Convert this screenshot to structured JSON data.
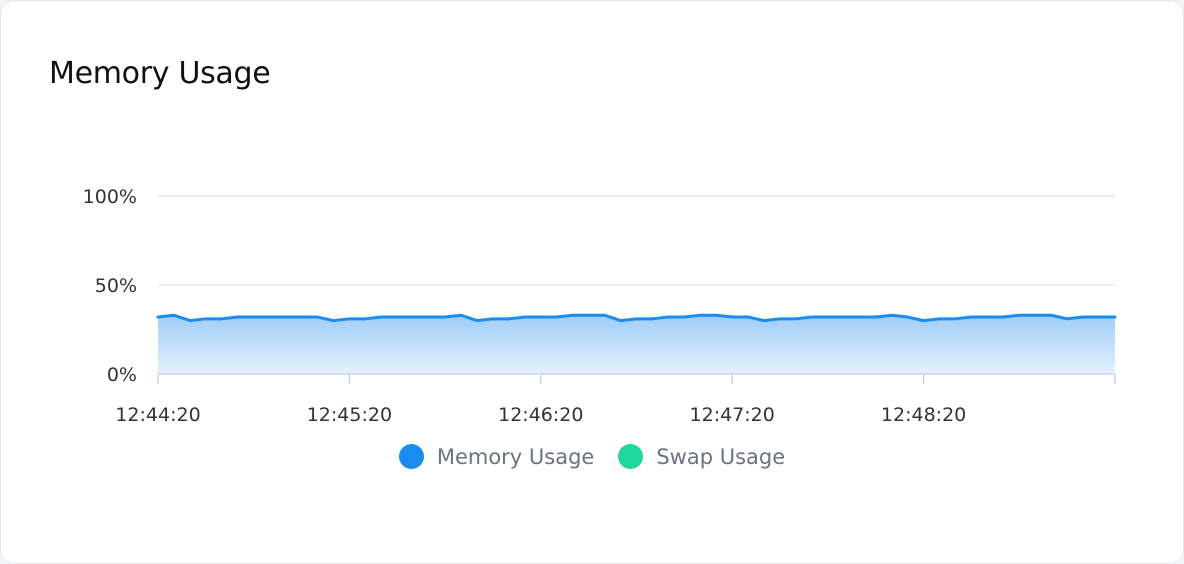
{
  "card": {
    "title": "Memory Usage"
  },
  "colors": {
    "memory": "#1a8cf0",
    "memory_fill_top": "#9fcdf8",
    "memory_fill_bottom": "#e4f1fd",
    "swap": "#1fd79a",
    "grid": "#e5e7eb",
    "axis": "#c9d6e8"
  },
  "chart_data": {
    "type": "area",
    "x_tick_labels": [
      "12:44:20",
      "12:45:20",
      "12:46:20",
      "12:47:20",
      "12:48:20"
    ],
    "y_tick_labels": [
      "0%",
      "50%",
      "100%"
    ],
    "ylim": [
      0,
      100
    ],
    "time_range_seconds": [
      0,
      300
    ],
    "sample_interval_seconds": 5,
    "grid": true,
    "legend_position": "bottom",
    "series": [
      {
        "name": "Memory Usage",
        "color": "#1a8cf0",
        "values": [
          32,
          33,
          30,
          31,
          31,
          32,
          32,
          32,
          32,
          32,
          32,
          30,
          31,
          31,
          32,
          32,
          32,
          32,
          32,
          33,
          30,
          31,
          31,
          32,
          32,
          32,
          33,
          33,
          33,
          30,
          31,
          31,
          32,
          32,
          33,
          33,
          32,
          32,
          30,
          31,
          31,
          32,
          32,
          32,
          32,
          32,
          33,
          32,
          30,
          31,
          31,
          32,
          32,
          32,
          33,
          33,
          33,
          31,
          32,
          32,
          32
        ]
      },
      {
        "name": "Swap Usage",
        "color": "#1fd79a",
        "values": []
      }
    ]
  }
}
